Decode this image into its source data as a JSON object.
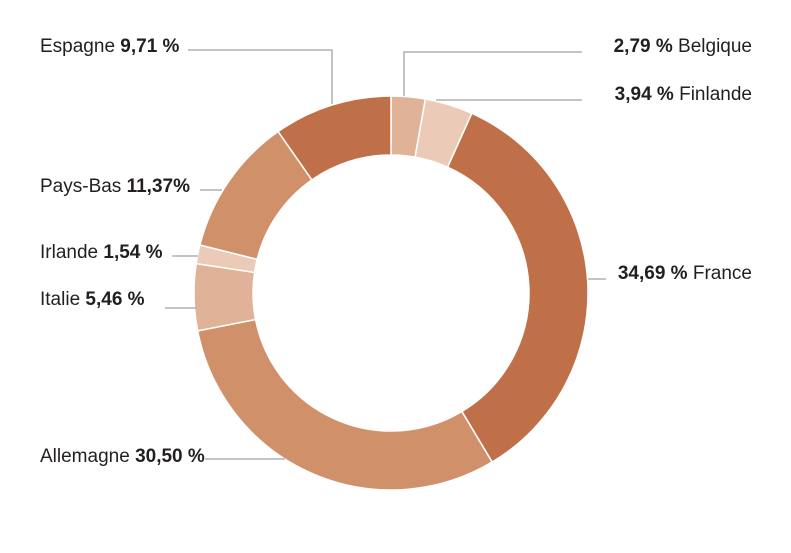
{
  "chart_data": {
    "type": "pie",
    "donut": true,
    "unit": "%",
    "slices": [
      {
        "name": "Belgique",
        "value": 2.79,
        "value_label": "2,79 %",
        "color": "#e0b297"
      },
      {
        "name": "Finlande",
        "value": 3.94,
        "value_label": "3,94 %",
        "color": "#ebcbb8"
      },
      {
        "name": "France",
        "value": 34.69,
        "value_label": "34,69 %",
        "color": "#c07048"
      },
      {
        "name": "Allemagne",
        "value": 30.5,
        "value_label": "30,50 %",
        "color": "#d0906a"
      },
      {
        "name": "Italie",
        "value": 5.46,
        "value_label": "5,46 %",
        "color": "#e0b297"
      },
      {
        "name": "Irlande",
        "value": 1.54,
        "value_label": "1,54 %",
        "color": "#ebcbb8"
      },
      {
        "name": "Pays-Bas",
        "value": 11.37,
        "value_label": "11,37%",
        "color": "#d0906a"
      },
      {
        "name": "Espagne",
        "value": 9.71,
        "value_label": "9,71 %",
        "color": "#c07048"
      }
    ]
  }
}
